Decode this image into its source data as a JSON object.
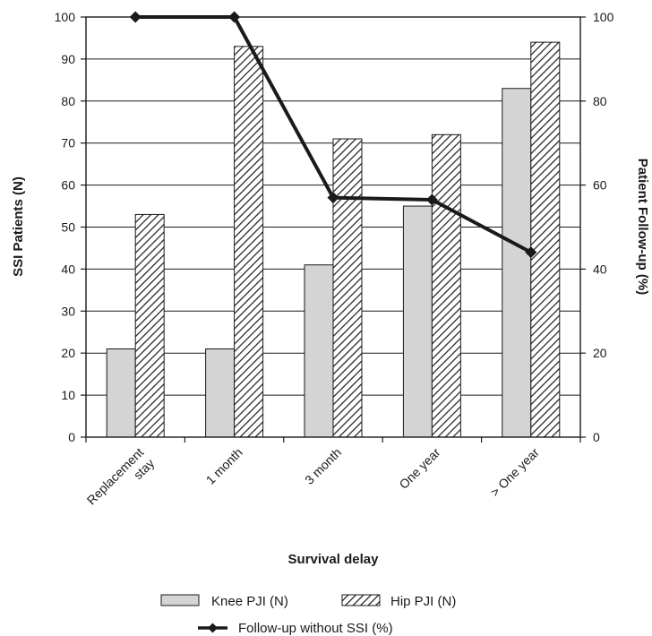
{
  "chart_data": {
    "type": "bar",
    "categories": [
      "Replacement stay",
      "1 month",
      "3 month",
      "One year",
      "> One year"
    ],
    "category_lines": [
      [
        "Replacement",
        "stay"
      ],
      [
        "1 month"
      ],
      [
        "3 month"
      ],
      [
        "One year"
      ],
      [
        "> One year"
      ]
    ],
    "series": [
      {
        "name": "Knee PJI (N)",
        "kind": "bar",
        "axis": "left",
        "pattern": "solid-gray",
        "color": "#d4d4d4",
        "values": [
          21,
          21,
          41,
          55,
          83
        ]
      },
      {
        "name": "Hip PJI (N)",
        "kind": "bar",
        "axis": "left",
        "pattern": "diagonal-hatch",
        "color": "#ffffff",
        "values": [
          53,
          93,
          71,
          72,
          94
        ]
      },
      {
        "name": "Follow-up without SSI (%)",
        "kind": "line",
        "axis": "right",
        "marker": "diamond",
        "color": "#1a1a1a",
        "values": [
          100,
          100,
          57,
          56.5,
          44
        ]
      }
    ],
    "xlabel": "Survival delay",
    "ylabel": "SSI Patients (N)",
    "y2label": "Patient Follow-up (%)",
    "ylim": [
      0,
      100
    ],
    "y2lim": [
      0,
      100
    ],
    "yticks": [
      "0",
      "10",
      "20",
      "30",
      "40",
      "50",
      "60",
      "70",
      "80",
      "90",
      "100"
    ],
    "y2ticks": [
      "0",
      "20",
      "40",
      "60",
      "80",
      "100"
    ],
    "grid": "horizontal",
    "legend_position": "bottom-center"
  }
}
